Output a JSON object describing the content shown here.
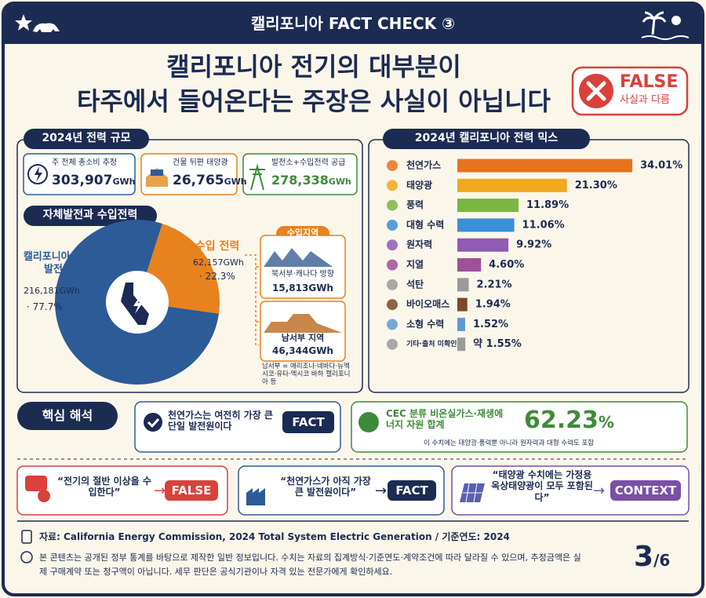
{
  "header": {
    "badge": "캘리포니아 FACT CHECK ③",
    "title_lines": [
      "캘리포니아 전기의 대부분이",
      "타주에서 들어온다는 주장은 사실이 아닙니다"
    ],
    "verdict": "FALSE",
    "verdict_sub": "사실과 다름"
  },
  "scale": {
    "heading": "2024년 전력 규모",
    "cards": [
      {
        "label": "주 전체 총소비 추정",
        "value": "303,907",
        "unit": "GWh"
      },
      {
        "label": "건물 뒤편 태양광",
        "value": "26,765",
        "unit": "GWh"
      },
      {
        "label": "발전소+수입전력 공급",
        "value": "278,338",
        "unit": "GWh"
      }
    ]
  },
  "split": {
    "heading": "자체발전과 수입전력",
    "chart": {
      "type": "pie",
      "categories": [
        "캘리포니아 내 발전",
        "순수입 전력"
      ],
      "values": [
        77.7,
        22.3
      ],
      "value_labels": [
        "· 77.7%",
        "· 22.3%"
      ],
      "energy_labels": [
        "216,181GWh",
        "62,157GWh"
      ],
      "colors": [
        "#2d5b98",
        "#e8821e"
      ],
      "donut": true
    }
  },
  "imports": {
    "heading": "수입지역",
    "regions": [
      {
        "name": "북서부·캐나다 방향",
        "value": "15,813GWh"
      },
      {
        "name": "남서부 지역",
        "value": "46,344GWh"
      }
    ],
    "note": "남서부 = 애리조나·네바다·뉴멕시코·유타·멕시코 바하 캘리포니아 등"
  },
  "mix": {
    "heading": "2024년 캘리포니아 전력 믹스",
    "chart": {
      "type": "bar",
      "orientation": "horizontal",
      "categories": [
        "천연가스",
        "태양광",
        "풍력",
        "대형 수력",
        "원자력",
        "지열",
        "석탄",
        "바이오매스",
        "소형 수력",
        "기타·출처 미확인"
      ],
      "values": [
        34.01,
        21.3,
        11.89,
        11.06,
        9.92,
        4.6,
        2.21,
        1.94,
        1.52,
        1.55
      ],
      "value_labels": [
        "34.01%",
        "21.30%",
        "11.89%",
        "11.06%",
        "9.92%",
        "4.60%",
        "2.21%",
        "1.94%",
        "1.52%",
        "약 1.55%"
      ],
      "colors": [
        "#e8731e",
        "#f2a81d",
        "#7ab640",
        "#3a8fd6",
        "#8e5bb5",
        "#a04f9a",
        "#9a9a9a",
        "#7a4a26",
        "#5b9bd5",
        "#9a9a9a"
      ]
    }
  },
  "insight": {
    "heading": "핵심 해석",
    "fact_text": "천연가스는 여전히 가장 큰 단일 발전원이다",
    "fact_tag": "FACT",
    "cec_text": "CEC 분류 비온실가스·재생에너지 자원 합계",
    "cec_value": "62.23",
    "cec_unit": "%",
    "cec_note": "이 수치에는 태양광·풍력뿐 아니라 원자력과 대형 수력도 포함"
  },
  "claims": [
    {
      "quote": "“전기의 절반 이상을 수입한다”",
      "verdict": "FALSE"
    },
    {
      "quote": "“천연가스가 아직 가장 큰 발전원이다”",
      "verdict": "FACT"
    },
    {
      "quote": "“태양광 수치에는 가정용 옥상태양광이 모두 포함된다”",
      "verdict": "CONTEXT"
    }
  ],
  "footer": {
    "source": "자료: California Energy Commission, 2024 Total System Electric Generation / 기준연도: 2024",
    "disclaimer": "본 콘텐츠는 공개된 정부 통계를 바탕으로 제작한 일반 정보입니다. 수치는 자료의 집계방식·기준연도·계약조건에 따라 달라질 수 있으며, 추정금액은 실제 구매계약 또는 청구액이 아닙니다. 세무 판단은 공식기관이나 자격 있는 전문가에게 확인하세요.",
    "page": "3",
    "page_total": "/6"
  }
}
